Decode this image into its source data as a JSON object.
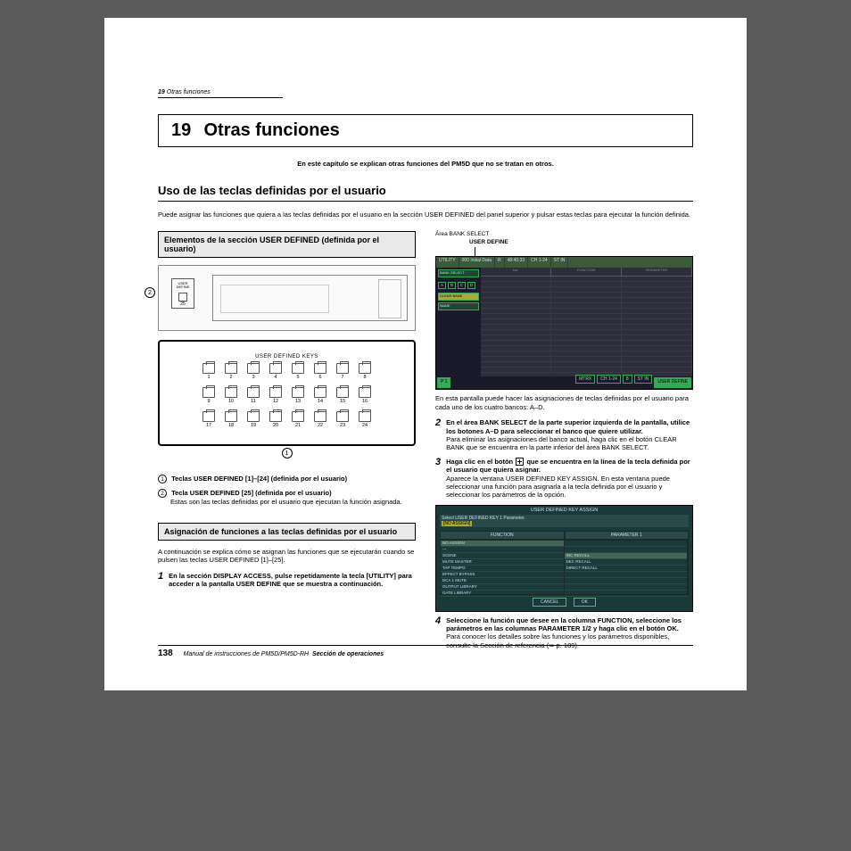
{
  "runningHead": {
    "num": "19",
    "text": "Otras funciones"
  },
  "chapter": {
    "num": "19",
    "title": "Otras funciones"
  },
  "intro": "En este capítulo se explican otras funciones del PM5D que no se tratan en otros.",
  "h2": "Uso de las teclas definidas por el usuario",
  "lead": "Puede asignar las funciones que quiera a las teclas definidas por el usuario en la sección USER DEFINED del panel superior y pulsar estas teclas para ejecutar la función definida.",
  "left": {
    "sub1": "Elementos de la sección USER DEFINED (definida por el usuario)",
    "diag1Key": "USER\nDEFINE",
    "diag1Key25": "25",
    "diag2Title": "USER DEFINED KEYS",
    "keyRows": [
      [
        "1",
        "2",
        "3",
        "4",
        "5",
        "6",
        "7",
        "8"
      ],
      [
        "9",
        "10",
        "11",
        "12",
        "13",
        "14",
        "15",
        "16"
      ],
      [
        "17",
        "18",
        "19",
        "20",
        "21",
        "22",
        "23",
        "24"
      ]
    ],
    "call1": "1",
    "call2": "2",
    "item1": {
      "n": "1",
      "bold": "Teclas USER DEFINED [1]–[24] (definida por el usuario)"
    },
    "item2": {
      "n": "2",
      "bold": "Tecla USER DEFINED [25] (definida por el usuario)",
      "body": "Estas son las teclas definidas por el usuario que ejecutan la función asignada."
    },
    "sub2": "Asignación de funciones a las teclas definidas por el usuario",
    "para": "A continuación se explica cómo se asignan las funciones que se ejecutarán cuando se pulsen las teclas USER DEFINED [1]–[25].",
    "step1": {
      "n": "1",
      "bold": "En la sección DISPLAY ACCESS, pulse repetidamente la tecla [UTILITY] para acceder a la pantalla USER DEFINE que se muestra a continuación."
    }
  },
  "right": {
    "figLabelA": "Área BANK SELECT",
    "figLabelB": "USER DEFINE",
    "screen1": {
      "topCells": [
        "UTILITY",
        "000 Initial Data",
        "R",
        "48:40:33",
        "CH 1-24",
        "ST IN"
      ],
      "leftBankLabel": "BANK SELECT",
      "banks": [
        "A",
        "B",
        "C",
        "D"
      ],
      "clear": "CLEAR BANK",
      "nameBtn": "NAME",
      "mainHdr": [
        "No.",
        "FUNCTION",
        "PARAMETER"
      ],
      "botLeft": "P 1",
      "botItems": [
        "MTRX",
        "CH 1-24",
        "8",
        "ST IN"
      ],
      "botRight": "USER DEFINE"
    },
    "caption1": "En esta pantalla puede hacer las asignaciones de teclas definidas por el usuario para cada uno de los cuatro bancos: A–D.",
    "step2": {
      "n": "2",
      "bold": "En el área BANK SELECT de la parte superior izquierda de la pantalla, utilice los botones A–D para seleccionar el banco que quiere utilizar.",
      "body": "Para eliminar las asignaciones del banco actual, haga clic en el botón CLEAR BANK que se encuentra en la parte inferior del área BANK SELECT."
    },
    "step3": {
      "n": "3",
      "boldA": "Haga clic en el botón ",
      "boldB": " que se encuentra en la línea de la tecla definida por el usuario que quiera asignar.",
      "body": "Aparece la ventana USER DEFINED KEY ASSIGN. En esta ventana puede seleccionar una función para asignarla a la tecla definida por el usuario y seleccionar los parámetros de la opción."
    },
    "screen2": {
      "title": "USER DEFINED KEY ASSIGN",
      "info": "Select USER DEFINED KEY 1 Parameter.",
      "infoSel": "[NO ASSIGN]",
      "headers": [
        "FUNCTION",
        "PARAMETER 1"
      ],
      "colA": [
        "NO ASSIGN",
        "—",
        "SCENE",
        "MUTE MASTER",
        "TAP TEMPO",
        "EFFECT BYPASS",
        "DCA 1 MUTE",
        "OUTPUT LIBRARY",
        "GATE LIBRARY"
      ],
      "colB": [
        "",
        "",
        "INC RECALL",
        "DEC RECALL",
        "DIRECT RECALL",
        "",
        "",
        "",
        ""
      ],
      "btnCancel": "CANCEL",
      "btnOk": "OK"
    },
    "step4": {
      "n": "4",
      "bold": "Seleccione la función que desee en la columna FUNCTION, seleccione los parámetros en las columnas PARAMETER 1/2 y haga clic en el botón OK.",
      "body": "Para conocer los detalles sobre las funciones y los parámetros disponibles, consulte la Sección de referencia (➥ p. 189)."
    }
  },
  "footer": {
    "page": "138",
    "line": "Manual de instrucciones de PM5D/PM5D-RH",
    "section": "Sección de operaciones"
  }
}
